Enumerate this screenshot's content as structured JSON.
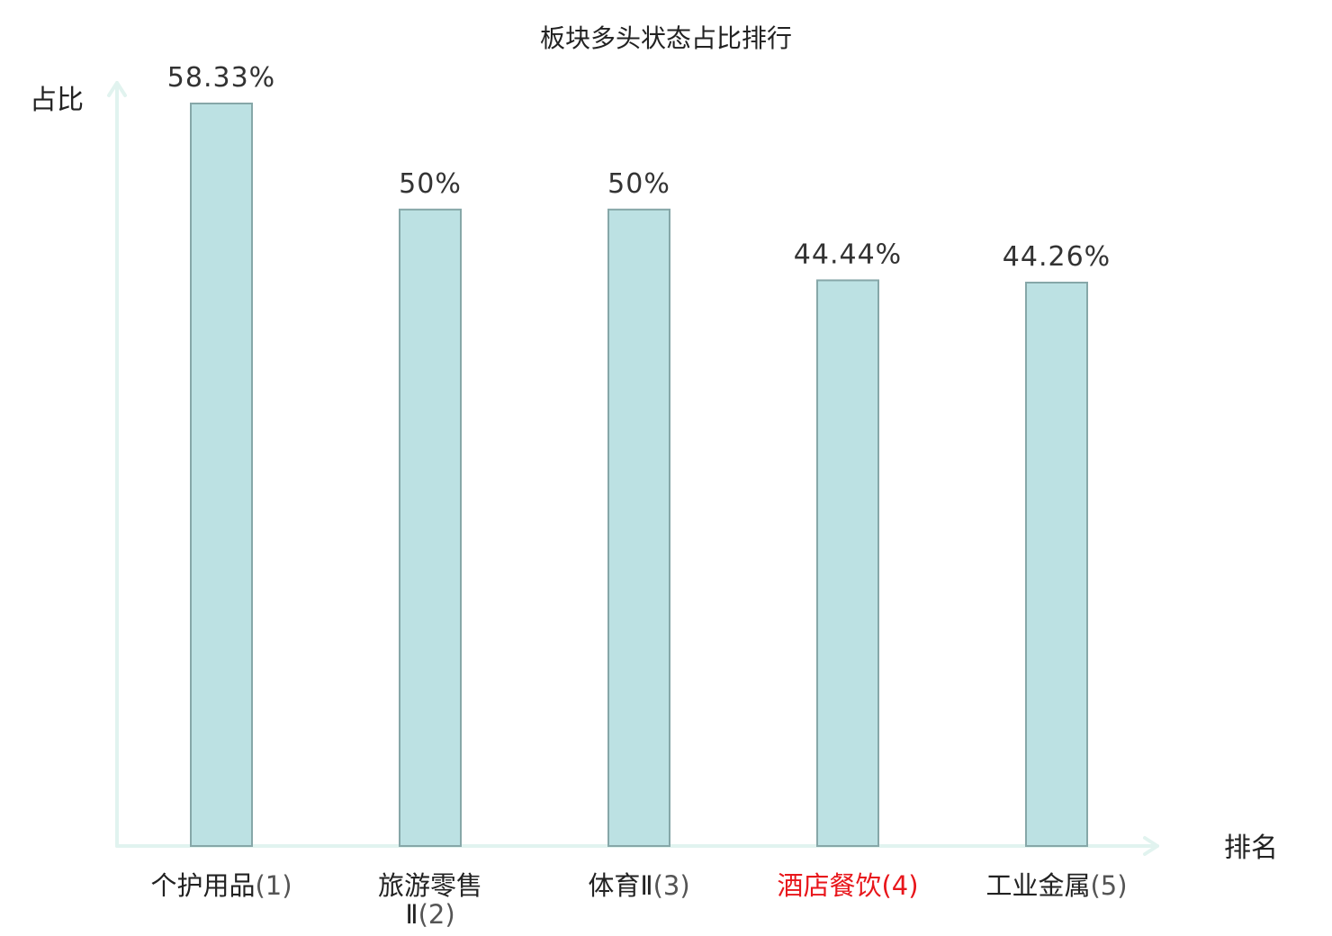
{
  "chart_data": {
    "type": "bar",
    "title": "板块多头状态占比排行",
    "ylabel": "占比",
    "xlabel": "排名",
    "ylim": [
      0,
      58.33
    ],
    "grid": false,
    "legend": "none",
    "categories": [
      {
        "name": "个护用品",
        "rank": "(1)",
        "highlight": false
      },
      {
        "name": "旅游零售Ⅱ",
        "rank": "(2)",
        "highlight": false
      },
      {
        "name": "体育Ⅱ",
        "rank": "(3)",
        "highlight": false
      },
      {
        "name": "酒店餐饮",
        "rank": "(4)",
        "highlight": true
      },
      {
        "name": "工业金属",
        "rank": "(5)",
        "highlight": false
      }
    ],
    "values": [
      58.33,
      50,
      50,
      44.44,
      44.26
    ],
    "value_labels": [
      "58.33%",
      "50%",
      "50%",
      "44.44%",
      "44.26%"
    ],
    "colors": {
      "bar_fill": "#bce1e3",
      "bar_stroke": "#86a7a8",
      "axis": "#e1f3ef",
      "highlight_text": "#e8161b"
    }
  }
}
